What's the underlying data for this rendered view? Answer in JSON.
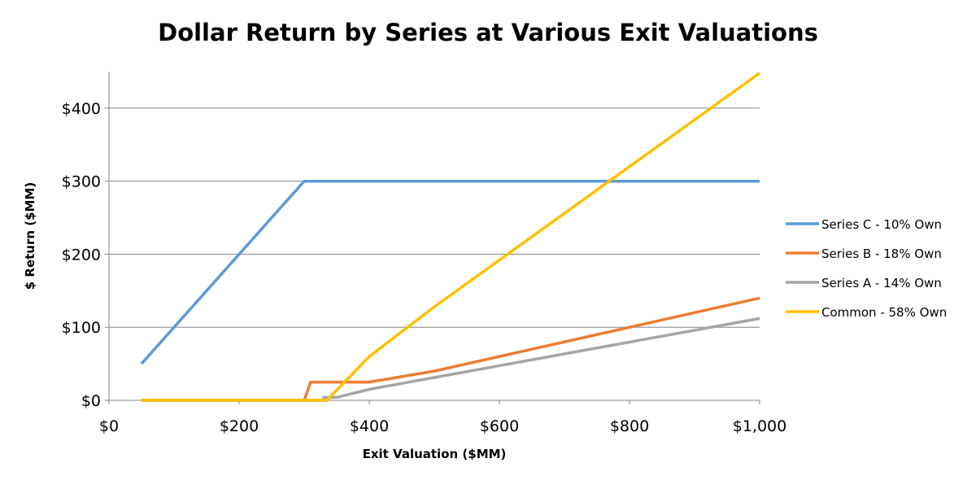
{
  "chart_data": {
    "type": "line",
    "title": "Dollar Return by Series at Various Exit Valuations",
    "xlabel": "Exit Valuation ($MM)",
    "ylabel": "$ Return ($MM)",
    "xlim": [
      0,
      1000
    ],
    "ylim": [
      0,
      450
    ],
    "x_ticks": [
      0,
      200,
      400,
      600,
      800,
      1000
    ],
    "x_tick_labels": [
      "$0",
      "$200",
      "$400",
      "$600",
      "$800",
      "$1,000"
    ],
    "y_ticks": [
      0,
      100,
      200,
      300,
      400
    ],
    "y_tick_labels": [
      "$0",
      "$100",
      "$200",
      "$300",
      "$400"
    ],
    "grid": "horizontal",
    "legend_position": "right",
    "series": [
      {
        "name": "Series C - 10% Own",
        "color": "#5B9BD5",
        "points": [
          [
            50,
            50
          ],
          [
            300,
            300
          ],
          [
            1000,
            300
          ]
        ]
      },
      {
        "name": "Series B - 18% Own",
        "color": "#ED7D31",
        "points": [
          [
            50,
            0
          ],
          [
            300,
            0
          ],
          [
            310,
            25
          ],
          [
            400,
            25
          ],
          [
            500,
            40
          ],
          [
            1000,
            140
          ]
        ]
      },
      {
        "name": "Series A - 14% Own",
        "color": "#A5A5A5",
        "points": [
          [
            50,
            0
          ],
          [
            330,
            0
          ],
          [
            330,
            4
          ],
          [
            350,
            4
          ],
          [
            400,
            15
          ],
          [
            1000,
            112
          ]
        ]
      },
      {
        "name": "Common - 58% Own",
        "color": "#FFC000",
        "points": [
          [
            50,
            0
          ],
          [
            335,
            0
          ],
          [
            400,
            60
          ],
          [
            500,
            128
          ],
          [
            1000,
            448
          ]
        ]
      }
    ]
  }
}
